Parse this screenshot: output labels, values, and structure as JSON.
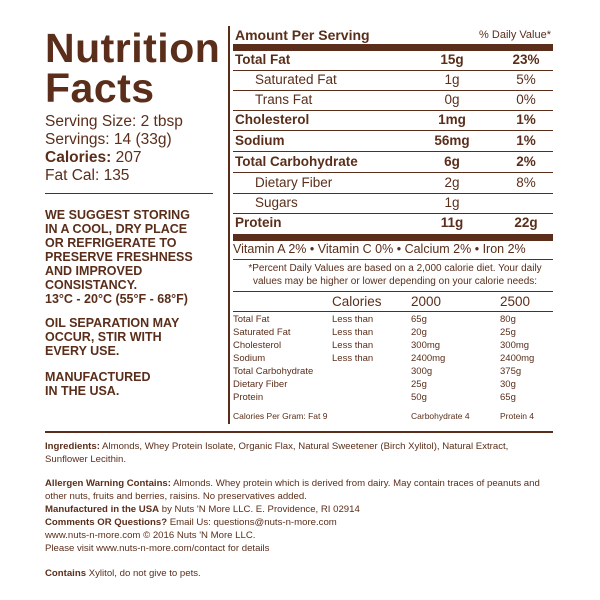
{
  "left": {
    "title_line1": "Nutrition",
    "title_line2": "Facts",
    "serving_size": "Serving Size: 2 tbsp",
    "servings": "Servings: 14 (33g)",
    "calories_label": "Calories:",
    "calories_value": "207",
    "fat_cal": "Fat Cal: 135",
    "storage_note": [
      "WE SUGGEST STORING",
      "IN A COOL, DRY PLACE",
      "OR REFRIGERATE TO",
      "PRESERVE FRESHNESS",
      "AND IMPROVED",
      "CONSISTANCY.",
      "13°C - 20°C (55°F - 68°F)"
    ],
    "oil_note": [
      "OIL SEPARATION MAY",
      "OCCUR, STIR WITH",
      "EVERY USE."
    ],
    "made_note": [
      "MANUFACTURED",
      "IN THE USA."
    ]
  },
  "table": {
    "header_left": "Amount Per Serving",
    "header_right": "% Daily Value*",
    "rows": [
      {
        "name": "Total Fat",
        "amount": "15g",
        "dv": "23%"
      },
      {
        "name": "Saturated Fat",
        "amount": "1g",
        "dv": "5%"
      },
      {
        "name": "Trans Fat",
        "amount": "0g",
        "dv": "0%"
      },
      {
        "name": "Cholesterol",
        "amount": "1mg",
        "dv": "1%"
      },
      {
        "name": "Sodium",
        "amount": "56mg",
        "dv": "1%"
      },
      {
        "name": "Total Carbohydrate",
        "amount": "6g",
        "dv": "2%"
      },
      {
        "name": "Dietary Fiber",
        "amount": "2g",
        "dv": "8%"
      },
      {
        "name": "Sugars",
        "amount": "1g",
        "dv": ""
      },
      {
        "name": "Protein",
        "amount": "11g",
        "dv": "22g"
      }
    ],
    "vitamins": "Vitamin A  2% • Vitamin C 0% • Calcium 2% • Iron 2%",
    "footnote": "*Percent Daily Values are based on a 2,000 calorie diet. Your daily values may be higher or lower depending on your calorie needs:",
    "footer_header": [
      "Calories",
      "2000",
      "2500"
    ],
    "footer_rows": [
      [
        "Total Fat",
        "Less than",
        "65g",
        "80g"
      ],
      [
        "Saturated Fat",
        "Less than",
        "20g",
        "25g"
      ],
      [
        "Cholesterol",
        "Less than",
        "300mg",
        "300mg"
      ],
      [
        "Sodium",
        "Less than",
        "2400mg",
        "2400mg"
      ],
      [
        "Total Carbohydrate",
        "",
        "300g",
        "375g"
      ],
      [
        "Dietary Fiber",
        "",
        "25g",
        "30g"
      ],
      [
        "Protein",
        "",
        "50g",
        "65g"
      ]
    ],
    "calories_per_gram": [
      "Calories Per Gram: Fat 9",
      "Carbohydrate 4",
      "Protein 4"
    ]
  },
  "bottom": {
    "ingredients_label": "Ingredients:",
    "ingredients_text": " Almonds, Whey Protein Isolate, Organic Flax, Natural Sweetener (Birch Xylitol), Natural Extract,",
    "ingredients_text2": "Sunflower Lecithin.",
    "allergen_label": "Allergen Warning Contains:",
    "allergen_text": " Almonds. Whey protein which is derived from dairy. May contain traces of peanuts and",
    "allergen_text2": "other nuts, fruits and berries, raisins. No preservatives added.",
    "manufactured_label": "Manufactured in the USA",
    "manufactured_text": " by Nuts 'N More LLC. E. Providence, RI 02914",
    "comments_label": "Comments OR Questions?",
    "comments_text": " Email Us: questions@nuts-n-more.com",
    "website_line": "www.nuts-n-more.com  © 2016 Nuts 'N More LLC.",
    "contact_line": "Please visit www.nuts-n-more.com/contact for details",
    "contains_label": "Contains",
    "contains_text": " Xylitol, do not give to pets."
  }
}
